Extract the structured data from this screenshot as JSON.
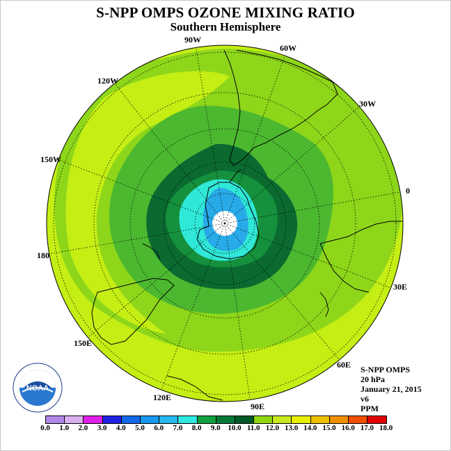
{
  "title": "S-NPP OMPS OZONE MIXING RATIO",
  "subtitle": "Southern Hemisphere",
  "longitude_labels": [
    "90W",
    "60W",
    "30W",
    "0",
    "30E",
    "60E",
    "90E",
    "120E",
    "150E",
    "180",
    "150W",
    "120W"
  ],
  "info": {
    "product": "S-NPP OMPS",
    "level": "20 hPa",
    "date": "January 21, 2015",
    "version": "v6",
    "units": "PPM"
  },
  "colorbar": {
    "ticks": [
      "0.0",
      "1.0",
      "2.0",
      "3.0",
      "4.0",
      "5.0",
      "6.0",
      "7.0",
      "8.0",
      "9.0",
      "10.0",
      "11.0",
      "12.0",
      "13.0",
      "14.0",
      "15.0",
      "16.0",
      "17.0",
      "18.0"
    ],
    "colors": [
      "#b088e8",
      "#d8b0f0",
      "#e020e8",
      "#2020e0",
      "#1068e8",
      "#1898f0",
      "#28b8f0",
      "#30e8e0",
      "#10a040",
      "#007838",
      "#005828",
      "#90d810",
      "#c8e820",
      "#e8f000",
      "#f0c000",
      "#f09000",
      "#f05000",
      "#e00000",
      "#885040"
    ]
  },
  "map": {
    "outer_level": 11.5,
    "max_level": 10.0,
    "contours_ppm": [
      11.0,
      10.0,
      9.0,
      8.0,
      7.0,
      6.0
    ],
    "colors": {
      "outer": "#c4ee14",
      "band_11": "#8cd418",
      "band_10": "#4ab82e",
      "band_9": "#0e8a3e",
      "band_8": "#0a6a30",
      "band_7": "#20a848",
      "band_6": "#30e8d8",
      "band_5": "#28aae8",
      "pole": "#ffffff"
    }
  },
  "logo": {
    "text": "NOAA"
  }
}
